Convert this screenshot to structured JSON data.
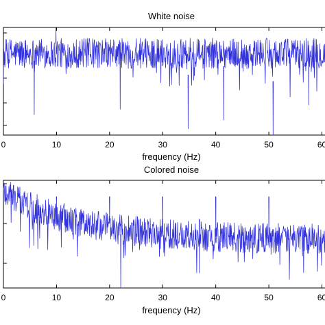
{
  "colors": {
    "series": "#3333dd",
    "axes": "#000000",
    "background": "#ffffff"
  },
  "chart_data": [
    {
      "type": "line",
      "title": "White noise",
      "xlabel": "frequency (Hz)",
      "ylabel": "",
      "xlim": [
        0,
        62
      ],
      "ylim": [
        0,
        1
      ],
      "xticks": [
        0,
        10,
        20,
        30,
        40,
        50,
        60
      ],
      "xtick_labels": [
        "0",
        "10",
        "20",
        "30",
        "40",
        "50",
        "60"
      ],
      "yticks_count": 4,
      "grid": false,
      "x": [
        0.5,
        5.8,
        9.9,
        22.0,
        34.8,
        41.5,
        50.8,
        57.5
      ],
      "y": [
        0.78,
        0.19,
        1.0,
        0.24,
        0.06,
        0.14,
        0.0,
        0.28
      ],
      "notes_series": "noise trace; values listed are prominent visible extremes, remaining points fluctuate around y≈0.75"
    },
    {
      "type": "line",
      "title": "Colored noise",
      "xlabel": "frequency (Hz)",
      "ylabel": "",
      "xlim": [
        0,
        62
      ],
      "ylim": [
        0,
        1
      ],
      "xticks": [
        0,
        10,
        20,
        30,
        40,
        50,
        60
      ],
      "xtick_labels": [
        "0",
        "10",
        "20",
        "30",
        "40",
        "50",
        "60"
      ],
      "yticks_count": 3,
      "grid": false,
      "x": [
        0.5,
        10,
        20,
        22.1,
        30,
        36.9,
        40,
        50,
        62
      ],
      "y": [
        0.95,
        0.78,
        0.6,
        0.0,
        0.52,
        0.14,
        0.48,
        0.45,
        0.42
      ],
      "notes_series": "decaying noise trace from ~0.92 at 0 Hz to ~0.45 at 62 Hz"
    }
  ]
}
